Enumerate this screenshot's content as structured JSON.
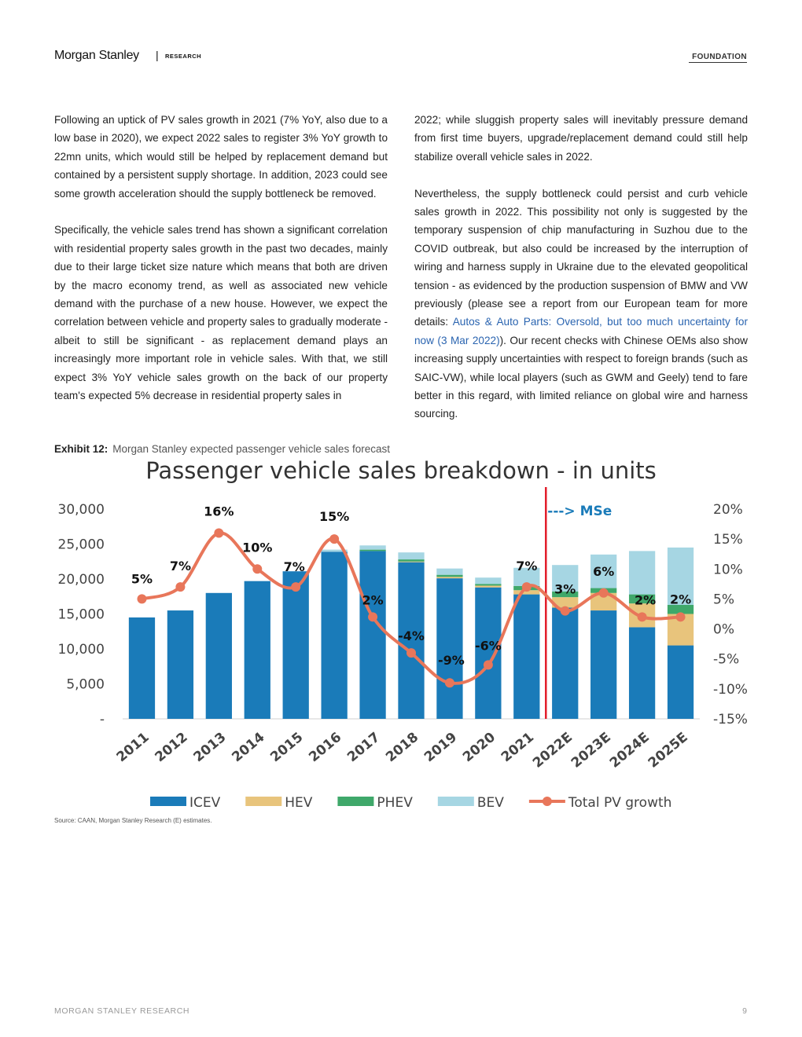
{
  "header": {
    "brand": "Morgan Stanley",
    "separator": "|",
    "section": "RESEARCH",
    "label": "FOUNDATION"
  },
  "body": {
    "left_p1": "Following an uptick of PV sales growth in 2021 (7% YoY, also due to a low base in 2020), we expect 2022 sales to register 3% YoY growth to 22mn units, which would still be helped by replacement demand but contained by a persistent supply shortage. In addition, 2023 could see some growth acceleration should the supply bottleneck be removed.",
    "left_p2": "Specifically, the vehicle sales trend has shown a significant correlation with residential property sales growth in the past two decades, mainly due to their large ticket size nature which means that both are driven by the macro economy trend, as well as associated new vehicle demand with the purchase of a new house. However, we expect the correlation between vehicle and property sales to gradually moderate - albeit to still be significant - as replacement demand plays an increasingly more important role in vehicle sales. With that, we still expect 3% YoY vehicle sales growth on the back of our property team's expected 5% decrease in residential property sales in",
    "right_p1": "2022; while sluggish property sales will inevitably pressure demand from first time buyers, upgrade/replacement demand could still help stabilize overall vehicle sales in 2022.",
    "right_p2_a": "Nevertheless, the supply bottleneck could persist and curb vehicle sales growth in 2022. This possibility not only is suggested by the temporary suspension of chip manufacturing in Suzhou due to the COVID outbreak, but also could be increased by the interruption of wiring and harness supply in Ukraine due to the elevated geopolitical tension - as evidenced by the production suspension of BMW and VW previously (please see a report from our European team for more details: ",
    "right_p2_link": "Autos & Auto Parts: Oversold, but too much uncertainty for now (3 Mar 2022)",
    "right_p2_b": "). Our recent checks with Chinese OEMs also show increasing supply uncertainties with respect to foreign brands (such as SAIC-VW), while local players (such as GWM and Geely) tend to fare better in this regard, with limited reliance on global wire and harness sourcing."
  },
  "exhibit": {
    "number": "Exhibit 12:",
    "caption": "Morgan Stanley expected passenger vehicle sales forecast",
    "source": "Source: CAAN, Morgan Stanley Research (E) estimates."
  },
  "chart_data": {
    "type": "bar",
    "title": "Passenger vehicle sales breakdown - in units",
    "categories": [
      "2011",
      "2012",
      "2013",
      "2014",
      "2015",
      "2016",
      "2017",
      "2018",
      "2019",
      "2020",
      "2021",
      "2022E",
      "2023E",
      "2024E",
      "2025E"
    ],
    "series": [
      {
        "name": "ICEV",
        "color": "#1a7bb9",
        "values": [
          14500,
          15500,
          18000,
          19700,
          21100,
          23900,
          24000,
          22400,
          20100,
          18800,
          17800,
          15900,
          15500,
          13100,
          10500
        ]
      },
      {
        "name": "HEV",
        "color": "#e8c47c",
        "values": [
          0,
          0,
          0,
          0,
          0,
          0,
          0,
          100,
          200,
          250,
          600,
          1500,
          2500,
          3400,
          4500
        ]
      },
      {
        "name": "PHEV",
        "color": "#3fa86a",
        "values": [
          0,
          0,
          0,
          0,
          0,
          0,
          200,
          300,
          300,
          250,
          600,
          800,
          700,
          1300,
          1300
        ]
      },
      {
        "name": "BEV",
        "color": "#a6d6e3",
        "values": [
          0,
          0,
          0,
          0,
          0,
          300,
          600,
          1000,
          900,
          900,
          2600,
          3800,
          4800,
          6200,
          8200
        ]
      }
    ],
    "line": {
      "name": "Total PV growth",
      "color": "#e8765a",
      "values": [
        5,
        7,
        16,
        10,
        7,
        15,
        2,
        -4,
        -9,
        -6,
        7,
        3,
        6,
        2,
        2
      ],
      "labels": [
        "5%",
        "7%",
        "16%",
        "10%",
        "7%",
        "15%",
        "2%",
        "-4%",
        "-9%",
        "-6%",
        "7%",
        "3%",
        "6%",
        "2%",
        "2%"
      ]
    },
    "y_left": {
      "min": 0,
      "max": 30000,
      "ticks": [
        "-",
        "5,000",
        "10,000",
        "15,000",
        "20,000",
        "25,000",
        "30,000"
      ]
    },
    "y_right": {
      "min": -15,
      "max": 20,
      "ticks": [
        "-15%",
        "-10%",
        "-5%",
        "0%",
        "5%",
        "10%",
        "15%",
        "20%"
      ]
    },
    "forecast_marker": {
      "label": "---> MSe",
      "after_category": "2021",
      "color": "#e21c2a"
    },
    "legend_position": "bottom",
    "grid": false
  },
  "footer": {
    "left": "MORGAN STANLEY RESEARCH",
    "page": "9"
  }
}
